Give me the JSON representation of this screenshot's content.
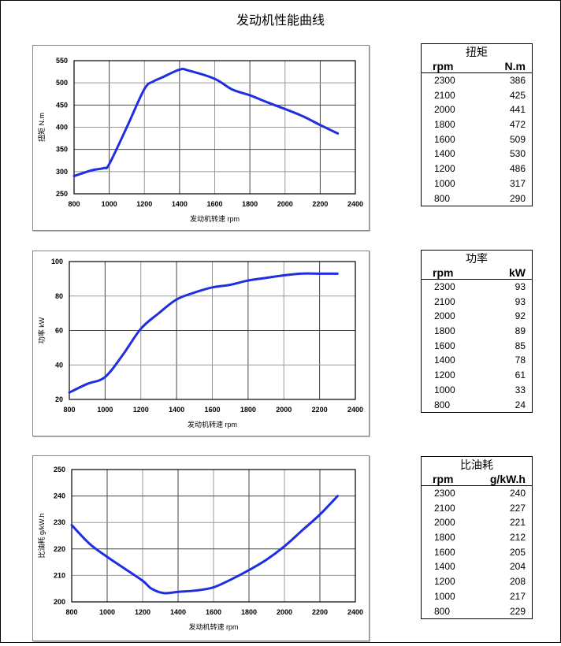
{
  "title": "发动机性能曲线",
  "line_color": "#1f2ee0",
  "chart_data": [
    {
      "type": "line",
      "title": "",
      "xlabel": "发动机转速  rpm",
      "ylabel": "扭矩  N.m",
      "xlim": [
        800,
        2400
      ],
      "ylim": [
        250,
        550
      ],
      "xticks": [
        "800",
        "1000",
        "1200",
        "1400",
        "1600",
        "1800",
        "2000",
        "2200",
        "2400"
      ],
      "yticks": [
        "250",
        "300",
        "350",
        "400",
        "450",
        "500",
        "550"
      ],
      "x": [
        800,
        900,
        970,
        1000,
        1100,
        1200,
        1250,
        1300,
        1400,
        1450,
        1600,
        1700,
        1800,
        1900,
        2000,
        2100,
        2200,
        2300
      ],
      "y": [
        290,
        303,
        308,
        317,
        400,
        486,
        503,
        512,
        530,
        528,
        509,
        485,
        472,
        456,
        441,
        425,
        405,
        386
      ]
    },
    {
      "type": "line",
      "title": "",
      "xlabel": "发动机转速  rpm",
      "ylabel": "功率  kW",
      "xlim": [
        800,
        2400
      ],
      "ylim": [
        20,
        100
      ],
      "xticks": [
        "800",
        "1000",
        "1200",
        "1400",
        "1600",
        "1800",
        "2000",
        "2200",
        "2400"
      ],
      "yticks": [
        "20",
        "40",
        "60",
        "80",
        "100"
      ],
      "x": [
        800,
        900,
        1000,
        1100,
        1200,
        1300,
        1400,
        1500,
        1600,
        1700,
        1800,
        1900,
        2000,
        2100,
        2200,
        2300
      ],
      "y": [
        24,
        29,
        33,
        46,
        61,
        70,
        78,
        82,
        85,
        86.5,
        89,
        90.5,
        92,
        93,
        93,
        93
      ]
    },
    {
      "type": "line",
      "title": "",
      "xlabel": "发动机转速  rpm",
      "ylabel": "比油耗  g/kW.h",
      "xlim": [
        800,
        2400
      ],
      "ylim": [
        200,
        250
      ],
      "xticks": [
        "800",
        "1000",
        "1200",
        "1400",
        "1600",
        "1800",
        "2000",
        "2200",
        "2400"
      ],
      "yticks": [
        "200",
        "210",
        "220",
        "230",
        "240",
        "250"
      ],
      "x": [
        800,
        900,
        1000,
        1100,
        1200,
        1250,
        1320,
        1400,
        1500,
        1600,
        1700,
        1800,
        1900,
        2000,
        2100,
        2200,
        2300
      ],
      "y": [
        229,
        222,
        217,
        212.5,
        208,
        205,
        203.3,
        203.8,
        204.3,
        205.5,
        208.5,
        212,
        216,
        221,
        227,
        233,
        240
      ]
    }
  ],
  "tables": [
    {
      "title": "扭矩",
      "col1": "rpm",
      "col2": "N.m",
      "rows": [
        [
          "2300",
          "386"
        ],
        [
          "2100",
          "425"
        ],
        [
          "2000",
          "441"
        ],
        [
          "1800",
          "472"
        ],
        [
          "1600",
          "509"
        ],
        [
          "1400",
          "530"
        ],
        [
          "1200",
          "486"
        ],
        [
          "1000",
          "317"
        ],
        [
          "800",
          "290"
        ]
      ]
    },
    {
      "title": "功率",
      "col1": "rpm",
      "col2": "kW",
      "rows": [
        [
          "2300",
          "93"
        ],
        [
          "2100",
          "93"
        ],
        [
          "2000",
          "92"
        ],
        [
          "1800",
          "89"
        ],
        [
          "1600",
          "85"
        ],
        [
          "1400",
          "78"
        ],
        [
          "1200",
          "61"
        ],
        [
          "1000",
          "33"
        ],
        [
          "800",
          "24"
        ]
      ]
    },
    {
      "title": "比油耗",
      "col1": "rpm",
      "col2": "g/kW.h",
      "rows": [
        [
          "2300",
          "240"
        ],
        [
          "2100",
          "227"
        ],
        [
          "2000",
          "221"
        ],
        [
          "1800",
          "212"
        ],
        [
          "1600",
          "205"
        ],
        [
          "1400",
          "204"
        ],
        [
          "1200",
          "208"
        ],
        [
          "1000",
          "217"
        ],
        [
          "800",
          "229"
        ]
      ]
    }
  ]
}
